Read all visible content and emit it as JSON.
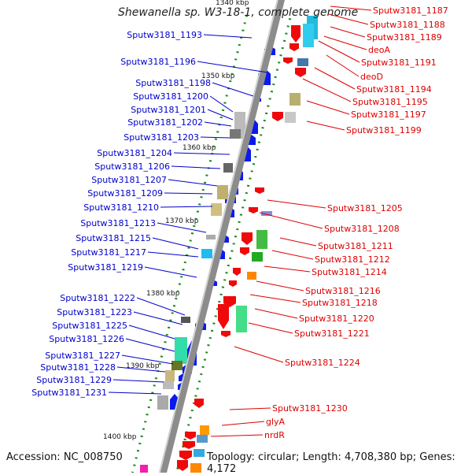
{
  "title": "Shewanella sp. W3-18-1, complete genome",
  "footer": {
    "accession": "Accession: NC_008750",
    "topology": "Topology: circular; Length: 4,708,380 bp; Genes: 4,172"
  },
  "colors": {
    "left_label": "#0000cc",
    "right_label": "#dd0000",
    "backbone": "#8c8c8c",
    "forward_gene": "#0a1aee",
    "reverse_gene": "#ee0a0a",
    "tick": "#1a8a1a"
  },
  "scale_labels": [
    {
      "text": "1340 kbp",
      "kb": 1340
    },
    {
      "text": "1350 kbp",
      "kb": 1350
    },
    {
      "text": "1360 kbp",
      "kb": 1360
    },
    {
      "text": "1370 kbp",
      "kb": 1370
    },
    {
      "text": "1380 kbp",
      "kb": 1380
    },
    {
      "text": "1390 kbp",
      "kb": 1390
    },
    {
      "text": "1400 kbp",
      "kb": 1400
    }
  ],
  "left_genes": [
    "Sputw3181_1193",
    "Sputw3181_1196",
    "Sputw3181_1198",
    "Sputw3181_1200",
    "Sputw3181_1201",
    "Sputw3181_1202",
    "Sputw3181_1203",
    "Sputw3181_1204",
    "Sputw3181_1206",
    "Sputw3181_1207",
    "Sputw3181_1209",
    "Sputw3181_1210",
    "Sputw3181_1213",
    "Sputw3181_1215",
    "Sputw3181_1217",
    "Sputw3181_1219",
    "Sputw3181_1222",
    "Sputw3181_1223",
    "Sputw3181_1225",
    "Sputw3181_1226",
    "Sputw3181_1227",
    "Sputw3181_1228",
    "Sputw3181_1229",
    "Sputw3181_1231"
  ],
  "right_genes": [
    "Sputw3181_1187",
    "Sputw3181_1188",
    "Sputw3181_1189",
    "deoA",
    "Sputw3181_1191",
    "deoD",
    "Sputw3181_1194",
    "Sputw3181_1195",
    "Sputw3181_1197",
    "Sputw3181_1199",
    "Sputw3181_1205",
    "Sputw3181_1208",
    "Sputw3181_1211",
    "Sputw3181_1212",
    "Sputw3181_1214",
    "Sputw3181_1216",
    "Sputw3181_1218",
    "Sputw3181_1220",
    "Sputw3181_1221",
    "Sputw3181_1224",
    "Sputw3181_1230",
    "glyA",
    "nrdR"
  ]
}
